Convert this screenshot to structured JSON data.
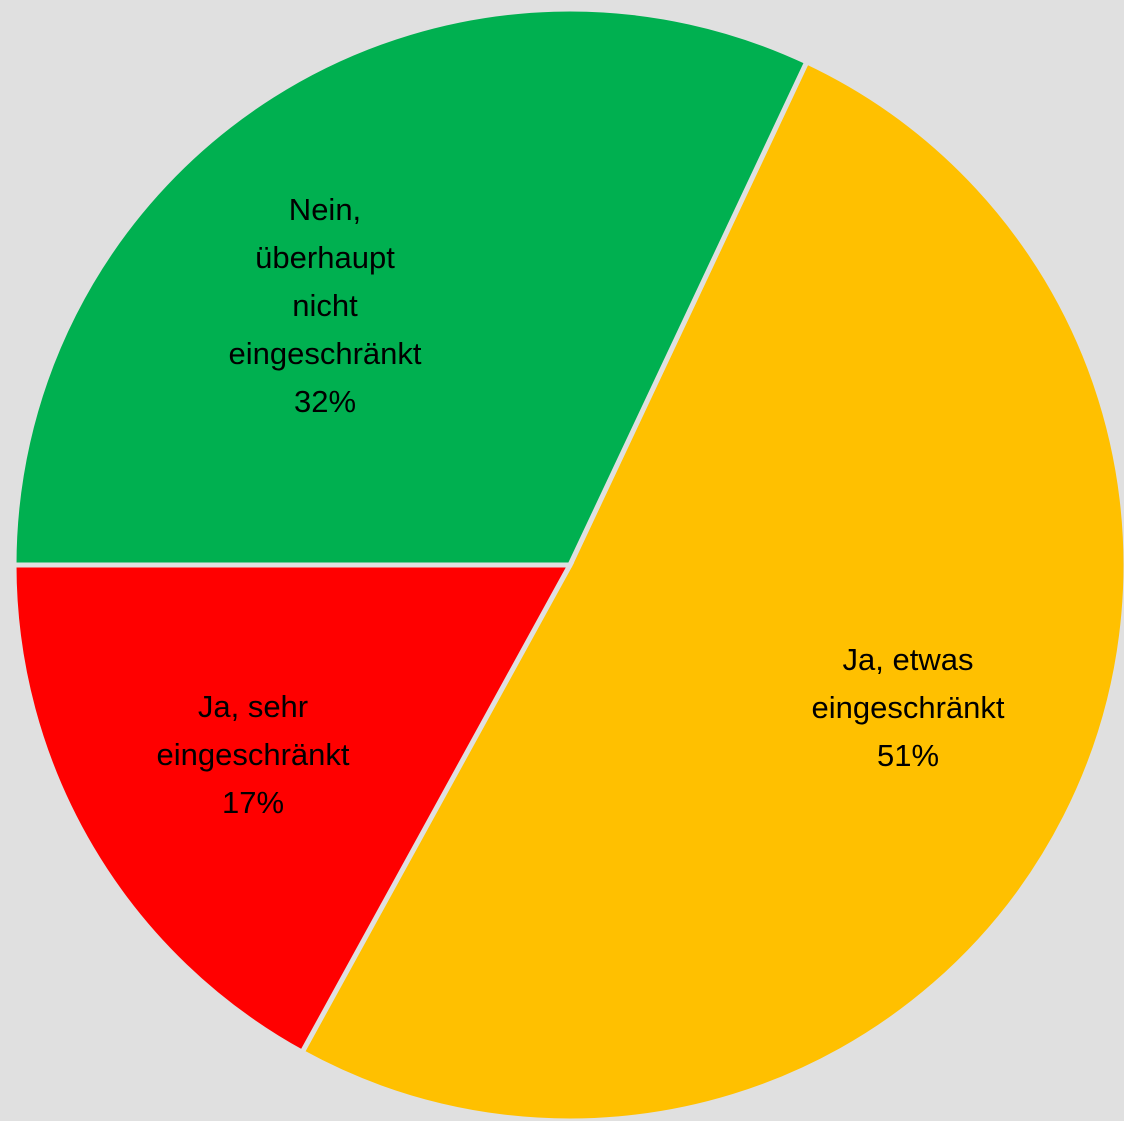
{
  "chart_data": {
    "type": "pie",
    "categories": [
      "Ja, etwas\neingeschränkt",
      "Ja, sehr\neingeschränkt",
      "Nein,\nüberhaupt\nnicht\neingeschränkt"
    ],
    "values": [
      51,
      17,
      32
    ],
    "value_labels": [
      "51%",
      "17%",
      "32%"
    ],
    "colors": [
      "#ffc000",
      "#ff0000",
      "#00b050"
    ]
  }
}
